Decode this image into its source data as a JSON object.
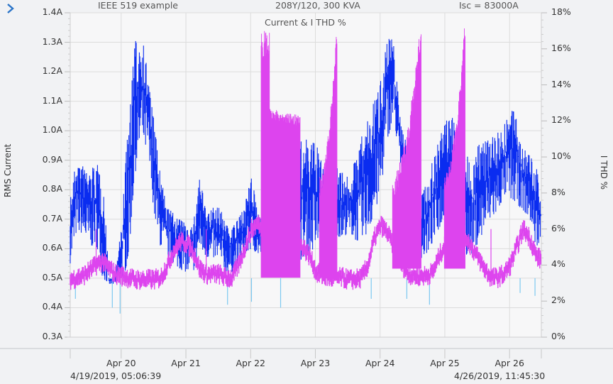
{
  "header": {
    "expand_icon": "chevron-right-icon",
    "title_left": "IEEE 519 example",
    "title_mid": "208Y/120, 300 KVA",
    "title_right": "Isc = 83000A"
  },
  "footer": {
    "start_timestamp": "4/19/2019, 05:06:39",
    "end_timestamp": "4/26/2019, 11:45:30"
  },
  "colors": {
    "current": "#0a2cf0",
    "current_light": "#7cc8f0",
    "thd": "#dd44ee",
    "grid": "#dcdcdc",
    "plot_bg": "#f7f7f8",
    "accent": "#2a74c8"
  },
  "chart_data": {
    "type": "line",
    "title": "Current & I THD %",
    "xlabel": "",
    "ylabel": "RMS Current",
    "ylabel_right": "I THD %",
    "ylim": [
      0.3,
      1.4
    ],
    "ylim_right": [
      0,
      18
    ],
    "yticks": [
      "1.4A",
      "1.3A",
      "1.2A",
      "1.1A",
      "1.0A",
      "0.9A",
      "0.8A",
      "0.7A",
      "0.6A",
      "0.5A",
      "0.4A",
      "0.3A"
    ],
    "yticks_right": [
      "18%",
      "16%",
      "14%",
      "12%",
      "10%",
      "8%",
      "6%",
      "4%",
      "2%",
      "0%"
    ],
    "xticks": [
      "Apr 20",
      "Apr 21",
      "Apr 22",
      "Apr 23",
      "Apr 24",
      "Apr 25",
      "Apr 26"
    ],
    "x_range_days": [
      0,
      7.278
    ],
    "grid": true,
    "legend": null,
    "series": [
      {
        "name": "RMS Current (A)",
        "axis": "left",
        "x_days": [
          0.0,
          0.1,
          0.2,
          0.3,
          0.4,
          0.5,
          0.6,
          0.7,
          0.8,
          0.9,
          1.0,
          1.1,
          1.2,
          1.3,
          1.4,
          1.5,
          1.6,
          1.7,
          1.8,
          1.9,
          2.0,
          2.1,
          2.2,
          2.3,
          2.4,
          2.5,
          2.6,
          2.7,
          2.8,
          2.9,
          3.0,
          3.1,
          3.2,
          3.3,
          3.4,
          3.5,
          3.6,
          3.7,
          3.8,
          3.9,
          4.0,
          4.1,
          4.2,
          4.3,
          4.4,
          4.5,
          4.6,
          4.7,
          4.8,
          4.9,
          5.0,
          5.1,
          5.2,
          5.3,
          5.4,
          5.5,
          5.6,
          5.7,
          5.8,
          5.9,
          6.0,
          6.1,
          6.2,
          6.3,
          6.4,
          6.5,
          6.6,
          6.7,
          6.8,
          6.9,
          7.0,
          7.1,
          7.2,
          7.278
        ],
        "max": [
          0.78,
          0.91,
          0.88,
          0.87,
          0.89,
          0.86,
          0.5,
          0.51,
          0.7,
          1.05,
          1.3,
          1.34,
          1.2,
          1.02,
          0.84,
          0.74,
          0.72,
          0.7,
          0.68,
          0.68,
          0.86,
          0.72,
          0.74,
          0.74,
          0.7,
          0.68,
          0.7,
          0.76,
          0.84,
          0.73,
          0.72,
          0.71,
          0.83,
          0.6,
          0.69,
          0.94,
          0.98,
          0.96,
          0.96,
          0.88,
          0.87,
          0.9,
          0.86,
          0.84,
          0.9,
          0.98,
          1.05,
          1.1,
          1.2,
          1.33,
          1.3,
          1.04,
          0.97,
          0.8,
          0.8,
          0.82,
          0.9,
          0.97,
          1.04,
          1.07,
          0.95,
          0.92,
          0.9,
          0.95,
          0.98,
          0.99,
          1.0,
          1.02,
          1.08,
          1.05,
          0.95,
          0.92,
          0.88,
          0.78
        ],
        "min": [
          0.55,
          0.66,
          0.65,
          0.6,
          0.62,
          0.5,
          0.48,
          0.48,
          0.49,
          0.56,
          0.85,
          0.97,
          0.92,
          0.71,
          0.6,
          0.58,
          0.55,
          0.53,
          0.52,
          0.52,
          0.6,
          0.57,
          0.57,
          0.56,
          0.52,
          0.52,
          0.55,
          0.58,
          0.6,
          0.58,
          0.56,
          0.53,
          0.52,
          0.51,
          0.5,
          0.55,
          0.57,
          0.58,
          0.61,
          0.62,
          0.66,
          0.65,
          0.63,
          0.66,
          0.63,
          0.62,
          0.66,
          0.71,
          0.8,
          0.97,
          1.05,
          0.86,
          0.7,
          0.55,
          0.56,
          0.58,
          0.62,
          0.67,
          0.7,
          0.72,
          0.6,
          0.58,
          0.58,
          0.62,
          0.66,
          0.7,
          0.72,
          0.78,
          0.77,
          0.75,
          0.73,
          0.7,
          0.6,
          0.64
        ],
        "low_spikes": [
          [
            0.08,
            0.43
          ],
          [
            0.65,
            0.4
          ],
          [
            0.77,
            0.38
          ],
          [
            2.43,
            0.41
          ],
          [
            2.8,
            0.42
          ],
          [
            3.25,
            0.4
          ],
          [
            4.65,
            0.43
          ],
          [
            5.2,
            0.43
          ],
          [
            5.55,
            0.41
          ],
          [
            6.95,
            0.45
          ],
          [
            7.18,
            0.44
          ]
        ]
      },
      {
        "name": "I THD (%)",
        "axis": "right",
        "x_days": [
          0.0,
          0.1,
          0.2,
          0.3,
          0.4,
          0.5,
          0.6,
          0.7,
          0.8,
          0.9,
          1.0,
          1.1,
          1.2,
          1.3,
          1.4,
          1.5,
          1.6,
          1.7,
          1.8,
          1.9,
          2.0,
          2.1,
          2.2,
          2.3,
          2.4,
          2.5,
          2.6,
          2.7,
          2.8,
          2.9,
          3.0,
          3.1,
          3.2,
          3.3,
          3.4,
          3.5,
          3.6,
          3.7,
          3.8,
          3.9,
          4.0,
          4.1,
          4.2,
          4.3,
          4.4,
          4.5,
          4.6,
          4.7,
          4.8,
          4.9,
          5.0,
          5.1,
          5.2,
          5.3,
          5.4,
          5.5,
          5.6,
          5.7,
          5.8,
          5.9,
          6.0,
          6.1,
          6.2,
          6.3,
          6.4,
          6.5,
          6.6,
          6.7,
          6.8,
          6.9,
          7.0,
          7.1,
          7.2,
          7.278
        ],
        "baseline": [
          3.2,
          3.3,
          3.4,
          3.7,
          4.0,
          4.2,
          3.8,
          3.5,
          3.4,
          3.3,
          3.2,
          3.2,
          3.2,
          3.2,
          3.3,
          4.0,
          4.8,
          5.3,
          5.2,
          4.8,
          3.8,
          3.5,
          3.5,
          3.5,
          3.3,
          3.3,
          4.0,
          5.0,
          6.0,
          6.3,
          6.0,
          5.8,
          5.4,
          5.2,
          5.0,
          5.2,
          5.0,
          4.5,
          3.6,
          3.4,
          3.3,
          3.3,
          3.3,
          3.2,
          3.2,
          3.3,
          4.0,
          5.5,
          6.2,
          5.8,
          5.0,
          4.2,
          3.6,
          3.4,
          3.4,
          3.4,
          3.6,
          4.5,
          5.2,
          5.8,
          6.3,
          5.6,
          5.0,
          4.4,
          3.8,
          3.3,
          3.3,
          3.5,
          4.0,
          5.0,
          6.0,
          5.5,
          4.5,
          4.3
        ],
        "bursts": [
          {
            "start": 2.95,
            "end": 3.55,
            "peak": 17.0,
            "floor": 3.3,
            "shape": "start-high"
          },
          {
            "start": 3.85,
            "end": 4.12,
            "peak": 17.3,
            "floor": 3.3,
            "shape": "ramp-up"
          },
          {
            "start": 4.98,
            "end": 5.42,
            "peak": 17.7,
            "floor": 3.8,
            "shape": "ramp-up"
          },
          {
            "start": 5.78,
            "end": 6.1,
            "peak": 17.7,
            "floor": 3.8,
            "shape": "ramp-up"
          }
        ],
        "spikes": [
          [
            0.4,
            6.0
          ],
          [
            2.1,
            6.0
          ],
          [
            2.82,
            5.5
          ],
          [
            5.85,
            6.4
          ],
          [
            6.5,
            6.0
          ],
          [
            7.2,
            4.8
          ]
        ]
      }
    ]
  }
}
